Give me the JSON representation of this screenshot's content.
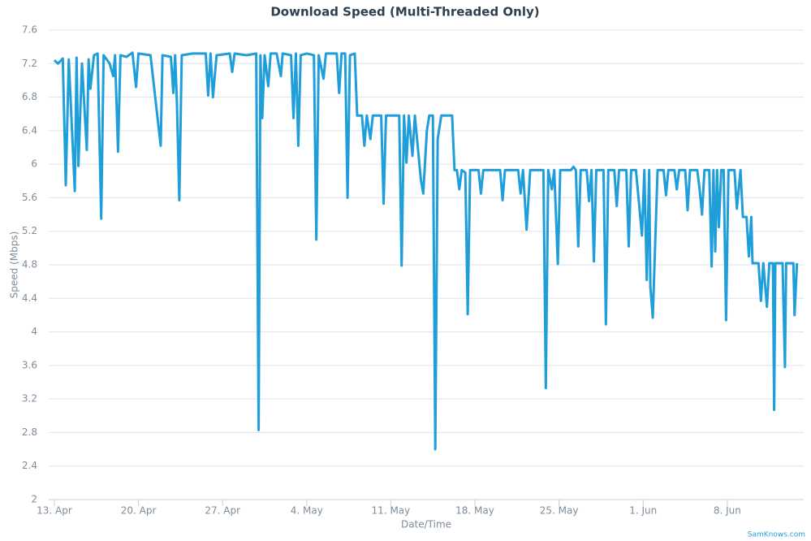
{
  "chart_data": {
    "type": "line",
    "title": "Download Speed (Multi-Threaded Only)",
    "x_label": "Date/Time",
    "y_label": "Speed (Mbps)",
    "credit": "SamKnows.com",
    "xlim": [
      -0.47,
      62.36
    ],
    "ylim": [
      2,
      7.6
    ],
    "xticks": [
      {
        "value": 0,
        "label": "13. Apr"
      },
      {
        "value": 7,
        "label": "20. Apr"
      },
      {
        "value": 14,
        "label": "27. Apr"
      },
      {
        "value": 21,
        "label": "4. May"
      },
      {
        "value": 28,
        "label": "11. May"
      },
      {
        "value": 35,
        "label": "18. May"
      },
      {
        "value": 42,
        "label": "25. May"
      },
      {
        "value": 49,
        "label": "1. Jun"
      },
      {
        "value": 56,
        "label": "8. Jun"
      }
    ],
    "yticks": [
      2,
      2.4,
      2.8,
      3.2,
      3.6,
      4,
      4.4,
      4.8,
      5.2,
      5.6,
      6,
      6.4,
      6.8,
      7.2,
      7.6
    ],
    "grid": true,
    "series": [
      {
        "name": "Download Speed",
        "color": "#1f9ed9",
        "x": [
          0,
          0.3,
          0.7,
          0.95,
          1.2,
          1.7,
          1.85,
          2.0,
          2.3,
          2.7,
          2.85,
          3.0,
          3.3,
          3.6,
          3.9,
          4.1,
          4.6,
          4.9,
          5.05,
          5.3,
          5.5,
          6.0,
          6.5,
          6.8,
          7.0,
          8.0,
          8.85,
          9.0,
          9.7,
          9.9,
          10.05,
          10.2,
          10.4,
          10.6,
          11.5,
          12.6,
          12.8,
          13.0,
          13.2,
          13.5,
          14.6,
          14.8,
          15.0,
          16.0,
          16.8,
          17.0,
          17.15,
          17.3,
          17.5,
          17.8,
          18.0,
          18.5,
          18.85,
          19.0,
          19.7,
          19.9,
          20.1,
          20.3,
          20.5,
          21.0,
          21.6,
          21.8,
          22.0,
          22.4,
          22.6,
          23.5,
          23.7,
          23.9,
          24.2,
          24.4,
          24.6,
          25.0,
          25.2,
          25.6,
          25.8,
          26.0,
          26.3,
          26.5,
          27.2,
          27.4,
          27.6,
          28.7,
          28.9,
          29.1,
          29.3,
          29.5,
          29.8,
          30.0,
          30.5,
          30.7,
          31.0,
          31.2,
          31.5,
          31.7,
          31.9,
          32.2,
          33.1,
          33.3,
          33.5,
          33.7,
          33.9,
          34.2,
          34.4,
          34.6,
          35.3,
          35.5,
          35.7,
          37.1,
          37.3,
          37.5,
          38.6,
          38.8,
          39.0,
          39.3,
          39.6,
          40.7,
          40.9,
          41.1,
          41.4,
          41.6,
          41.9,
          42.1,
          43.0,
          43.2,
          43.4,
          43.6,
          43.8,
          44.3,
          44.5,
          44.7,
          44.9,
          45.1,
          45.7,
          45.9,
          46.1,
          46.6,
          46.8,
          47.0,
          47.6,
          47.8,
          48.0,
          48.4,
          48.6,
          48.9,
          49.1,
          49.3,
          49.5,
          49.6,
          49.8,
          50.0,
          50.2,
          50.7,
          50.9,
          51.1,
          51.6,
          51.8,
          52.0,
          52.5,
          52.7,
          52.9,
          53.5,
          53.7,
          53.9,
          54.1,
          54.5,
          54.7,
          54.85,
          55.0,
          55.15,
          55.3,
          55.5,
          55.7,
          55.9,
          56.1,
          56.6,
          56.8,
          57.1,
          57.3,
          57.6,
          57.8,
          58.0,
          58.1,
          58.6,
          58.8,
          59.0,
          59.3,
          59.5,
          59.8,
          59.9,
          60.0,
          60.6,
          60.8,
          60.9,
          61.5,
          61.6,
          61.8
        ],
        "values": [
          7.24,
          7.2,
          7.26,
          5.75,
          7.25,
          5.68,
          7.27,
          5.98,
          7.2,
          6.17,
          7.25,
          6.9,
          7.3,
          7.32,
          5.35,
          7.3,
          7.2,
          7.05,
          7.3,
          6.15,
          7.3,
          7.28,
          7.33,
          6.92,
          7.32,
          7.3,
          6.22,
          7.3,
          7.28,
          6.85,
          7.3,
          6.73,
          5.57,
          7.3,
          7.32,
          7.32,
          6.82,
          7.32,
          6.8,
          7.3,
          7.32,
          7.1,
          7.32,
          7.3,
          7.32,
          2.83,
          7.3,
          6.55,
          7.3,
          6.93,
          7.32,
          7.32,
          7.05,
          7.32,
          7.3,
          6.55,
          7.32,
          6.22,
          7.3,
          7.32,
          7.3,
          5.1,
          7.3,
          7.02,
          7.32,
          7.32,
          6.85,
          7.32,
          7.32,
          5.6,
          7.3,
          7.32,
          6.58,
          6.58,
          6.22,
          6.58,
          6.3,
          6.58,
          6.58,
          5.53,
          6.58,
          6.58,
          4.79,
          6.58,
          6.02,
          6.58,
          6.1,
          6.58,
          5.82,
          5.65,
          6.4,
          6.58,
          6.58,
          2.6,
          6.3,
          6.58,
          6.58,
          5.93,
          5.93,
          5.7,
          5.93,
          5.9,
          4.21,
          5.93,
          5.93,
          5.65,
          5.93,
          5.93,
          5.57,
          5.93,
          5.93,
          5.65,
          5.93,
          5.22,
          5.93,
          5.93,
          3.33,
          5.93,
          5.7,
          5.93,
          4.81,
          5.93,
          5.93,
          5.97,
          5.93,
          5.02,
          5.93,
          5.93,
          5.56,
          5.93,
          4.84,
          5.93,
          5.93,
          4.09,
          5.93,
          5.93,
          5.5,
          5.93,
          5.93,
          5.02,
          5.93,
          5.93,
          5.62,
          5.15,
          5.93,
          4.62,
          5.93,
          4.54,
          4.17,
          5.05,
          5.93,
          5.93,
          5.63,
          5.93,
          5.93,
          5.7,
          5.93,
          5.93,
          5.45,
          5.93,
          5.93,
          5.7,
          5.4,
          5.93,
          5.93,
          4.78,
          5.93,
          4.96,
          5.93,
          5.25,
          5.93,
          5.93,
          4.14,
          5.93,
          5.93,
          5.47,
          5.93,
          5.37,
          5.37,
          4.9,
          5.37,
          4.82,
          4.82,
          4.37,
          4.82,
          4.3,
          4.82,
          4.82,
          3.07,
          4.82,
          4.82,
          3.58,
          4.82,
          4.82,
          4.2,
          4.82
        ]
      }
    ]
  }
}
